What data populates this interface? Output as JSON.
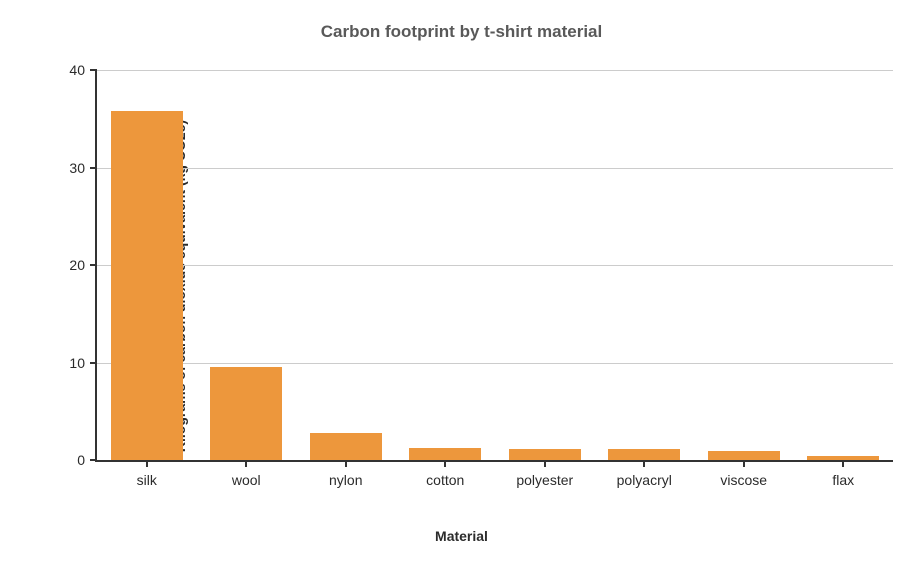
{
  "chart": {
    "type": "bar",
    "title": "Carbon footprint by t-shirt material",
    "title_fontsize": 17,
    "title_color": "#595959",
    "xlabel": "Material",
    "ylabel": "Kilograms of carbon dioxide equivalent (kg CO2e)",
    "label_fontsize": 14,
    "label_color": "#2b2b2b",
    "tick_fontsize": 14,
    "tick_color": "#2b2b2b",
    "categories": [
      "silk",
      "wool",
      "nylon",
      "cotton",
      "polyester",
      "polyacryl",
      "viscose",
      "flax"
    ],
    "values": [
      35.8,
      9.5,
      2.8,
      1.2,
      1.1,
      1.1,
      0.9,
      0.4
    ],
    "bar_color": "#ed973c",
    "bar_width": 0.72,
    "ylim": [
      0,
      40
    ],
    "ytick_step": 10,
    "yticks": [
      0,
      10,
      20,
      30,
      40
    ],
    "background_color": "#ffffff",
    "grid_color": "#cccccc",
    "axis_color": "#333333",
    "grid": true
  }
}
